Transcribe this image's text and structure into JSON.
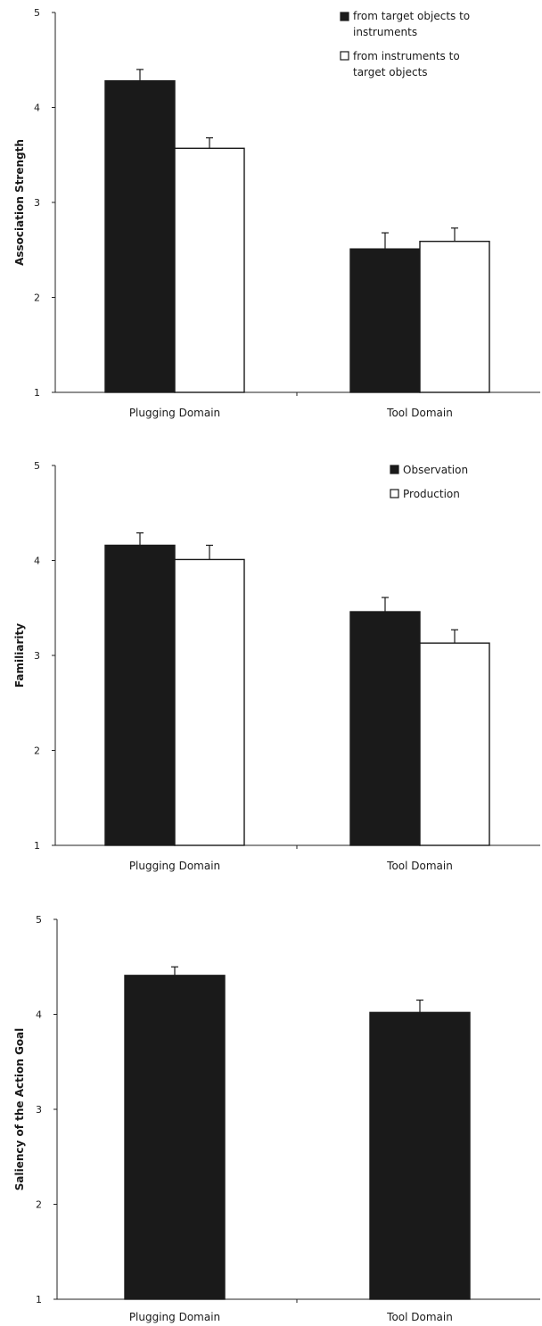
{
  "chart_data": [
    {
      "type": "bar",
      "categories": [
        "Plugging Domain",
        "Tool Domain"
      ],
      "ylabel": "Association Strength",
      "xlabel": "",
      "ylim": [
        1,
        5
      ],
      "yticks": [
        "1",
        "2",
        "3",
        "4",
        "5"
      ],
      "legend": "top-right",
      "series": [
        {
          "name": "from target objects to instruments",
          "color": "#1a1a1a",
          "values": [
            4.28,
            2.51
          ],
          "errors": [
            0.12,
            0.17
          ]
        },
        {
          "name": "from instruments to target objects",
          "color": "#ffffff",
          "values": [
            3.57,
            2.59
          ],
          "errors": [
            0.11,
            0.14
          ]
        }
      ]
    },
    {
      "type": "bar",
      "categories": [
        "Plugging Domain",
        "Tool Domain"
      ],
      "ylabel": "Familiarity",
      "xlabel": "",
      "ylim": [
        1,
        5
      ],
      "yticks": [
        "1",
        "2",
        "3",
        "4",
        "5"
      ],
      "legend": "top-right",
      "series": [
        {
          "name": "Observation",
          "color": "#1a1a1a",
          "values": [
            4.16,
            3.46
          ],
          "errors": [
            0.13,
            0.15
          ]
        },
        {
          "name": "Production",
          "color": "#ffffff",
          "values": [
            4.01,
            3.13
          ],
          "errors": [
            0.15,
            0.14
          ]
        }
      ]
    },
    {
      "type": "bar",
      "categories": [
        "Plugging Domain",
        "Tool Domain"
      ],
      "ylabel": "Saliency of the Action Goal",
      "xlabel": "",
      "ylim": [
        1,
        5
      ],
      "yticks": [
        "1",
        "2",
        "3",
        "4",
        "5"
      ],
      "legend": "none",
      "series": [
        {
          "color": "#1a1a1a",
          "values": [
            4.41,
            4.02
          ],
          "errors": [
            0.09,
            0.13
          ]
        }
      ]
    }
  ]
}
